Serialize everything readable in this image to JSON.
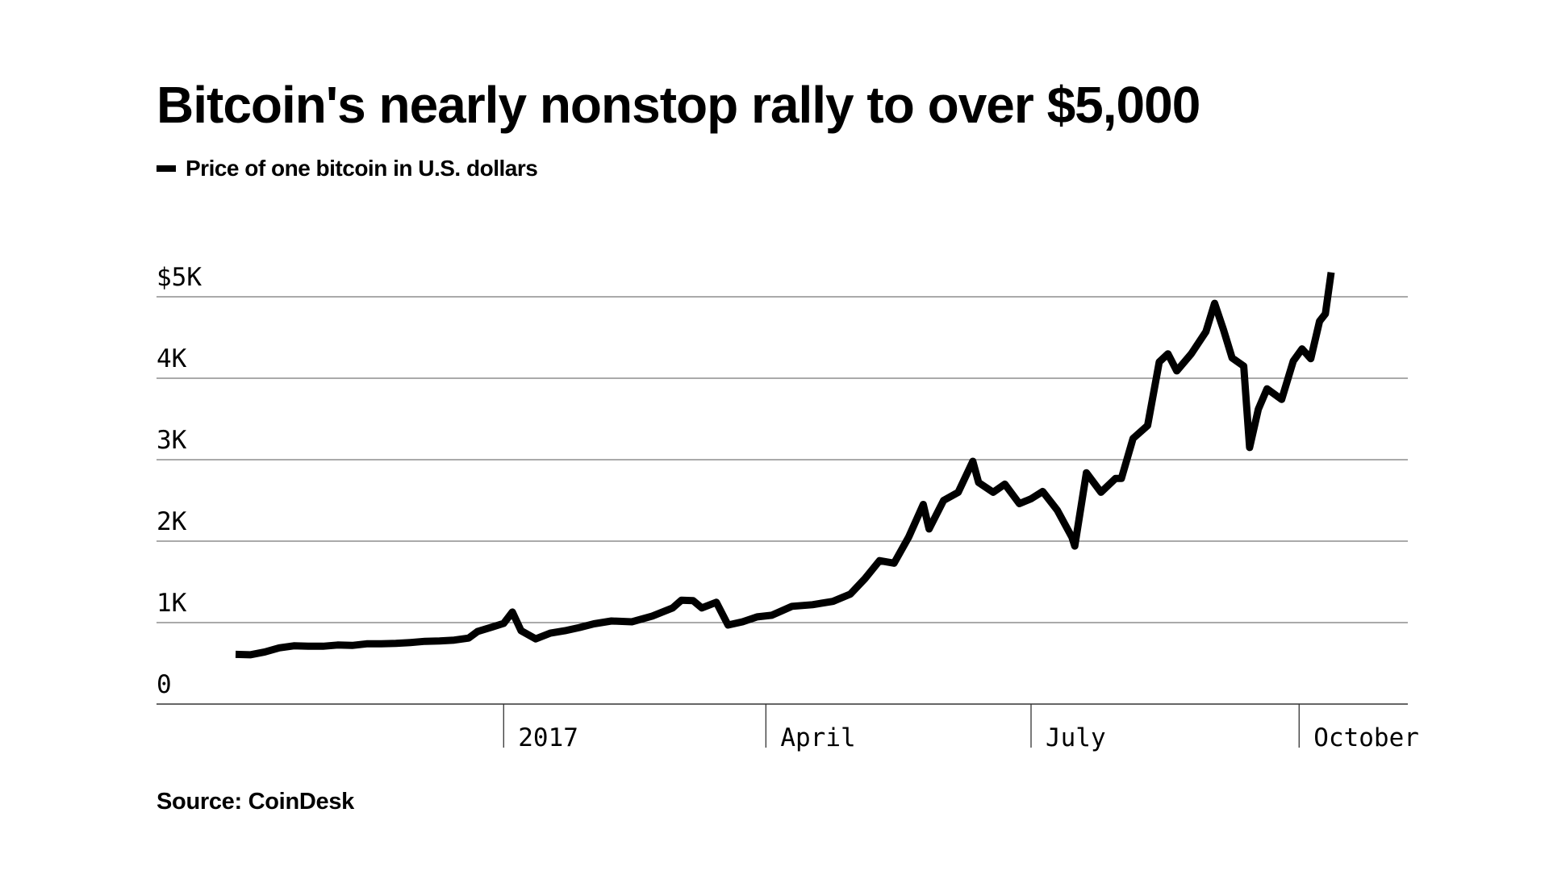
{
  "chart_data": {
    "type": "line",
    "title": "Bitcoin's nearly nonstop rally to over $5,000",
    "legend": "top-left",
    "grid": true,
    "source": "Source: CoinDesk",
    "x_range": [
      "2016-10-01",
      "2017-10-12"
    ],
    "ylim": [
      0,
      5000
    ],
    "yticks": [
      {
        "value": 0,
        "label": "0"
      },
      {
        "value": 1000,
        "label": "1K"
      },
      {
        "value": 2000,
        "label": "2K"
      },
      {
        "value": 3000,
        "label": "3K"
      },
      {
        "value": 4000,
        "label": "4K"
      },
      {
        "value": 5000,
        "label": "$5K"
      }
    ],
    "xticks": [
      {
        "value": "2017-01-01",
        "label": "2017"
      },
      {
        "value": "2017-04-01",
        "label": "April"
      },
      {
        "value": "2017-07-01",
        "label": "July"
      },
      {
        "value": "2017-10-01",
        "label": "October"
      }
    ],
    "series": [
      {
        "name": "Price of one bitcoin in U.S. dollars",
        "color": "#000000",
        "x": [
          "2016-10-01",
          "2016-10-06",
          "2016-10-11",
          "2016-10-16",
          "2016-10-21",
          "2016-10-26",
          "2016-10-31",
          "2016-11-05",
          "2016-11-10",
          "2016-11-15",
          "2016-11-20",
          "2016-11-25",
          "2016-11-30",
          "2016-12-05",
          "2016-12-10",
          "2016-12-15",
          "2016-12-20",
          "2016-12-23",
          "2016-12-28",
          "2017-01-01",
          "2017-01-04",
          "2017-01-07",
          "2017-01-12",
          "2017-01-17",
          "2017-01-22",
          "2017-01-27",
          "2017-02-01",
          "2017-02-07",
          "2017-02-14",
          "2017-02-21",
          "2017-02-28",
          "2017-03-03",
          "2017-03-07",
          "2017-03-10",
          "2017-03-15",
          "2017-03-19",
          "2017-03-24",
          "2017-03-29",
          "2017-04-03",
          "2017-04-10",
          "2017-04-17",
          "2017-04-24",
          "2017-04-30",
          "2017-05-05",
          "2017-05-10",
          "2017-05-15",
          "2017-05-20",
          "2017-05-25",
          "2017-05-27",
          "2017-06-01",
          "2017-06-06",
          "2017-06-11",
          "2017-06-13",
          "2017-06-18",
          "2017-06-22",
          "2017-06-27",
          "2017-07-01",
          "2017-07-05",
          "2017-07-10",
          "2017-07-15",
          "2017-07-16",
          "2017-07-20",
          "2017-07-25",
          "2017-07-30",
          "2017-08-01",
          "2017-08-05",
          "2017-08-10",
          "2017-08-14",
          "2017-08-17",
          "2017-08-20",
          "2017-08-25",
          "2017-08-30",
          "2017-09-02",
          "2017-09-05",
          "2017-09-08",
          "2017-09-12",
          "2017-09-14",
          "2017-09-17",
          "2017-09-20",
          "2017-09-25",
          "2017-09-29",
          "2017-10-02",
          "2017-10-05",
          "2017-10-08",
          "2017-10-10",
          "2017-10-12"
        ],
        "y": [
          610,
          605,
          640,
          690,
          715,
          710,
          710,
          725,
          720,
          740,
          740,
          745,
          755,
          770,
          775,
          785,
          810,
          890,
          945,
          990,
          1130,
          900,
          800,
          870,
          900,
          940,
          985,
          1020,
          1010,
          1080,
          1180,
          1275,
          1270,
          1180,
          1250,
          970,
          1010,
          1070,
          1090,
          1200,
          1220,
          1260,
          1350,
          1540,
          1760,
          1730,
          2050,
          2450,
          2150,
          2500,
          2600,
          2980,
          2720,
          2600,
          2700,
          2460,
          2520,
          2610,
          2380,
          2050,
          1940,
          2840,
          2600,
          2770,
          2770,
          3260,
          3420,
          4200,
          4300,
          4090,
          4300,
          4570,
          4920,
          4600,
          4250,
          4150,
          3150,
          3620,
          3870,
          3740,
          4210,
          4360,
          4240,
          4700,
          4790,
          5300
        ]
      }
    ]
  }
}
